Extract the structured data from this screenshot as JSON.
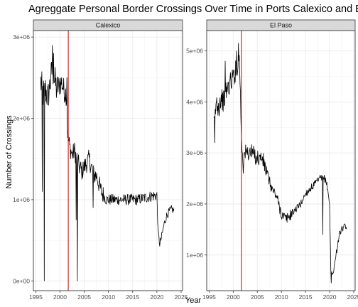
{
  "chart_data": {
    "type": "line",
    "title": "Agreggate Personal Border Crossings Over Time in Ports Calexico and El Paso",
    "xlabel": "Year",
    "ylabel": "Number of Crossings",
    "grid": true,
    "colors": {
      "series": "#000000",
      "reference_line": "#cc0000",
      "strip": "#d9d9d9",
      "grid": "#ebebeb"
    },
    "reference_line": {
      "x": 2001.7
    },
    "facets": [
      {
        "name": "Calexico",
        "xlim": [
          1994.5,
          2025.3
        ],
        "ylim": [
          -120000,
          3080000
        ],
        "x_ticks": [
          1995,
          2000,
          2005,
          2010,
          2015,
          2020,
          2025
        ],
        "x_tick_labels": [
          "1995",
          "2000",
          "2005",
          "2010",
          "2015",
          "2020",
          "2025"
        ],
        "y_ticks": [
          0,
          1000000,
          2000000,
          3000000
        ],
        "y_tick_labels": [
          "0e+00",
          "1e+06",
          "2e+06",
          "3e+06"
        ],
        "anchors": [
          [
            1996.0,
            2450000
          ],
          [
            1996.5,
            2300000
          ],
          [
            1997.0,
            2350000
          ],
          [
            1997.5,
            2250000
          ],
          [
            1998.0,
            2450000
          ],
          [
            1998.4,
            2600000
          ],
          [
            1998.8,
            2500000
          ],
          [
            1999.3,
            2350000
          ],
          [
            1999.8,
            2400000
          ],
          [
            2000.3,
            2450000
          ],
          [
            2000.8,
            2350000
          ],
          [
            2001.3,
            2300000
          ],
          [
            2001.6,
            1800000
          ],
          [
            2002.0,
            1650000
          ],
          [
            2002.5,
            1550000
          ],
          [
            2003.0,
            1600000
          ],
          [
            2003.5,
            1500000
          ],
          [
            2004.0,
            1400000
          ],
          [
            2004.5,
            1350000
          ],
          [
            2005.0,
            1400000
          ],
          [
            2005.5,
            1450000
          ],
          [
            2006.0,
            1500000
          ],
          [
            2006.5,
            1400000
          ],
          [
            2007.0,
            1300000
          ],
          [
            2007.5,
            1300000
          ],
          [
            2008.0,
            1200000
          ],
          [
            2008.5,
            1100000
          ],
          [
            2009.0,
            1050000
          ],
          [
            2009.5,
            1000000
          ],
          [
            2010.0,
            1000000
          ],
          [
            2012.0,
            1000000
          ],
          [
            2014.0,
            1000000
          ],
          [
            2016.0,
            1000000
          ],
          [
            2018.0,
            1030000
          ],
          [
            2019.5,
            1050000
          ],
          [
            2020.0,
            1050000
          ],
          [
            2020.25,
            600000
          ],
          [
            2020.6,
            450000
          ],
          [
            2021.0,
            550000
          ],
          [
            2021.5,
            700000
          ],
          [
            2022.0,
            800000
          ],
          [
            2022.5,
            850000
          ],
          [
            2023.0,
            880000
          ],
          [
            2023.5,
            870000
          ]
        ],
        "noise": [
          [
            1996.0,
            1999.5,
            200000
          ],
          [
            1999.5,
            2001.5,
            150000
          ],
          [
            2001.5,
            2003.0,
            120000
          ],
          [
            2003.0,
            2009.0,
            120000
          ],
          [
            2009.0,
            2020.0,
            70000
          ],
          [
            2020.0,
            2024.0,
            50000
          ]
        ],
        "spikes": [
          [
            1996.3,
            1100000
          ],
          [
            1996.75,
            0
          ],
          [
            1998.4,
            2900000
          ],
          [
            1998.7,
            2800000
          ],
          [
            2001.4,
            2500000
          ],
          [
            2003.3,
            750000
          ],
          [
            2003.6,
            0
          ],
          [
            2006.8,
            900000
          ]
        ]
      },
      {
        "name": "El Paso",
        "xlim": [
          1994.5,
          2025.3
        ],
        "ylim": [
          300000,
          5400000
        ],
        "x_ticks": [
          1995,
          2000,
          2005,
          2010,
          2015,
          2020,
          2025
        ],
        "x_tick_labels": [
          "1995",
          "2000",
          "2005",
          "2010",
          "2015",
          "2020",
          "2025"
        ],
        "y_ticks": [
          1000000,
          2000000,
          3000000,
          4000000,
          5000000
        ],
        "y_tick_labels": [
          "1e+06",
          "2e+06",
          "3e+06",
          "4e+06",
          "5e+06"
        ],
        "anchors": [
          [
            1996.0,
            3500000
          ],
          [
            1996.5,
            4000000
          ],
          [
            1997.0,
            3900000
          ],
          [
            1997.5,
            4100000
          ],
          [
            1998.0,
            4000000
          ],
          [
            1998.5,
            4200000
          ],
          [
            1999.0,
            4300000
          ],
          [
            1999.5,
            4400000
          ],
          [
            2000.0,
            4500000
          ],
          [
            2000.5,
            4600000
          ],
          [
            2001.0,
            4800000
          ],
          [
            2001.3,
            4900000
          ],
          [
            2001.7,
            3300000
          ],
          [
            2002.0,
            2900000
          ],
          [
            2002.5,
            3000000
          ],
          [
            2003.0,
            3000000
          ],
          [
            2004.0,
            3000000
          ],
          [
            2005.0,
            2900000
          ],
          [
            2006.0,
            2900000
          ],
          [
            2007.0,
            2600000
          ],
          [
            2008.0,
            2300000
          ],
          [
            2009.0,
            2150000
          ],
          [
            2010.0,
            1800000
          ],
          [
            2011.0,
            1700000
          ],
          [
            2012.0,
            1800000
          ],
          [
            2013.0,
            1900000
          ],
          [
            2014.0,
            2000000
          ],
          [
            2015.0,
            2200000
          ],
          [
            2016.0,
            2300000
          ],
          [
            2017.0,
            2400000
          ],
          [
            2018.0,
            2500000
          ],
          [
            2019.0,
            2500000
          ],
          [
            2019.5,
            2350000
          ],
          [
            2020.0,
            2000000
          ],
          [
            2020.25,
            700000
          ],
          [
            2020.6,
            600000
          ],
          [
            2021.0,
            800000
          ],
          [
            2021.5,
            1100000
          ],
          [
            2022.0,
            1400000
          ],
          [
            2022.5,
            1500000
          ],
          [
            2023.0,
            1550000
          ],
          [
            2023.5,
            1550000
          ]
        ],
        "noise": [
          [
            1996.0,
            2001.6,
            220000
          ],
          [
            2001.6,
            2007.0,
            170000
          ],
          [
            2007.0,
            2012.0,
            110000
          ],
          [
            2012.0,
            2020.0,
            70000
          ],
          [
            2020.0,
            2024.0,
            60000
          ]
        ],
        "spikes": [
          [
            1996.2,
            3200000
          ],
          [
            1998.3,
            4800000
          ],
          [
            2000.7,
            5000000
          ],
          [
            2001.1,
            5150000
          ],
          [
            2002.1,
            2600000
          ],
          [
            2018.6,
            1400000
          ],
          [
            2020.3,
            450000
          ]
        ]
      }
    ]
  }
}
